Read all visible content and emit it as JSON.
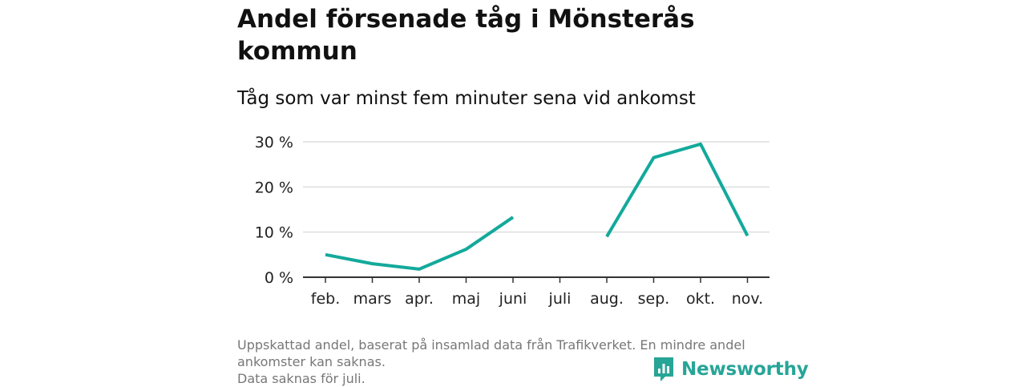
{
  "header": {
    "title": "Andel försenade tåg i Mönsterås kommun",
    "subtitle": "Tåg som var minst fem minuter sena vid ankomst"
  },
  "chart_data": {
    "type": "line",
    "categories": [
      "feb.",
      "mars",
      "apr.",
      "maj",
      "juni",
      "juli",
      "aug.",
      "sep.",
      "okt.",
      "nov."
    ],
    "series": [
      {
        "values": [
          5.0,
          3.0,
          1.8,
          6.2,
          13.3,
          null,
          9.0,
          26.5,
          29.5,
          9.2
        ]
      }
    ],
    "yticks": [
      0,
      10,
      20,
      30
    ],
    "ytick_labels": [
      "0 %",
      "10 %",
      "20 %",
      "30 %"
    ],
    "ylim": [
      0,
      30
    ],
    "grid": true,
    "line_color": "#13a99b",
    "grid_color": "#dddddd",
    "axis_color": "#333333"
  },
  "footer": {
    "note_line1": "Uppskattad andel, baserat på insamlad data från Trafikverket. En mindre andel",
    "note_line2": "ankomster kan saknas.",
    "note_line3": "Data saknas för juli."
  },
  "logo": {
    "text": "Newsworthy",
    "icon": "newsworthy-chart-icon",
    "color": "#27a597"
  }
}
